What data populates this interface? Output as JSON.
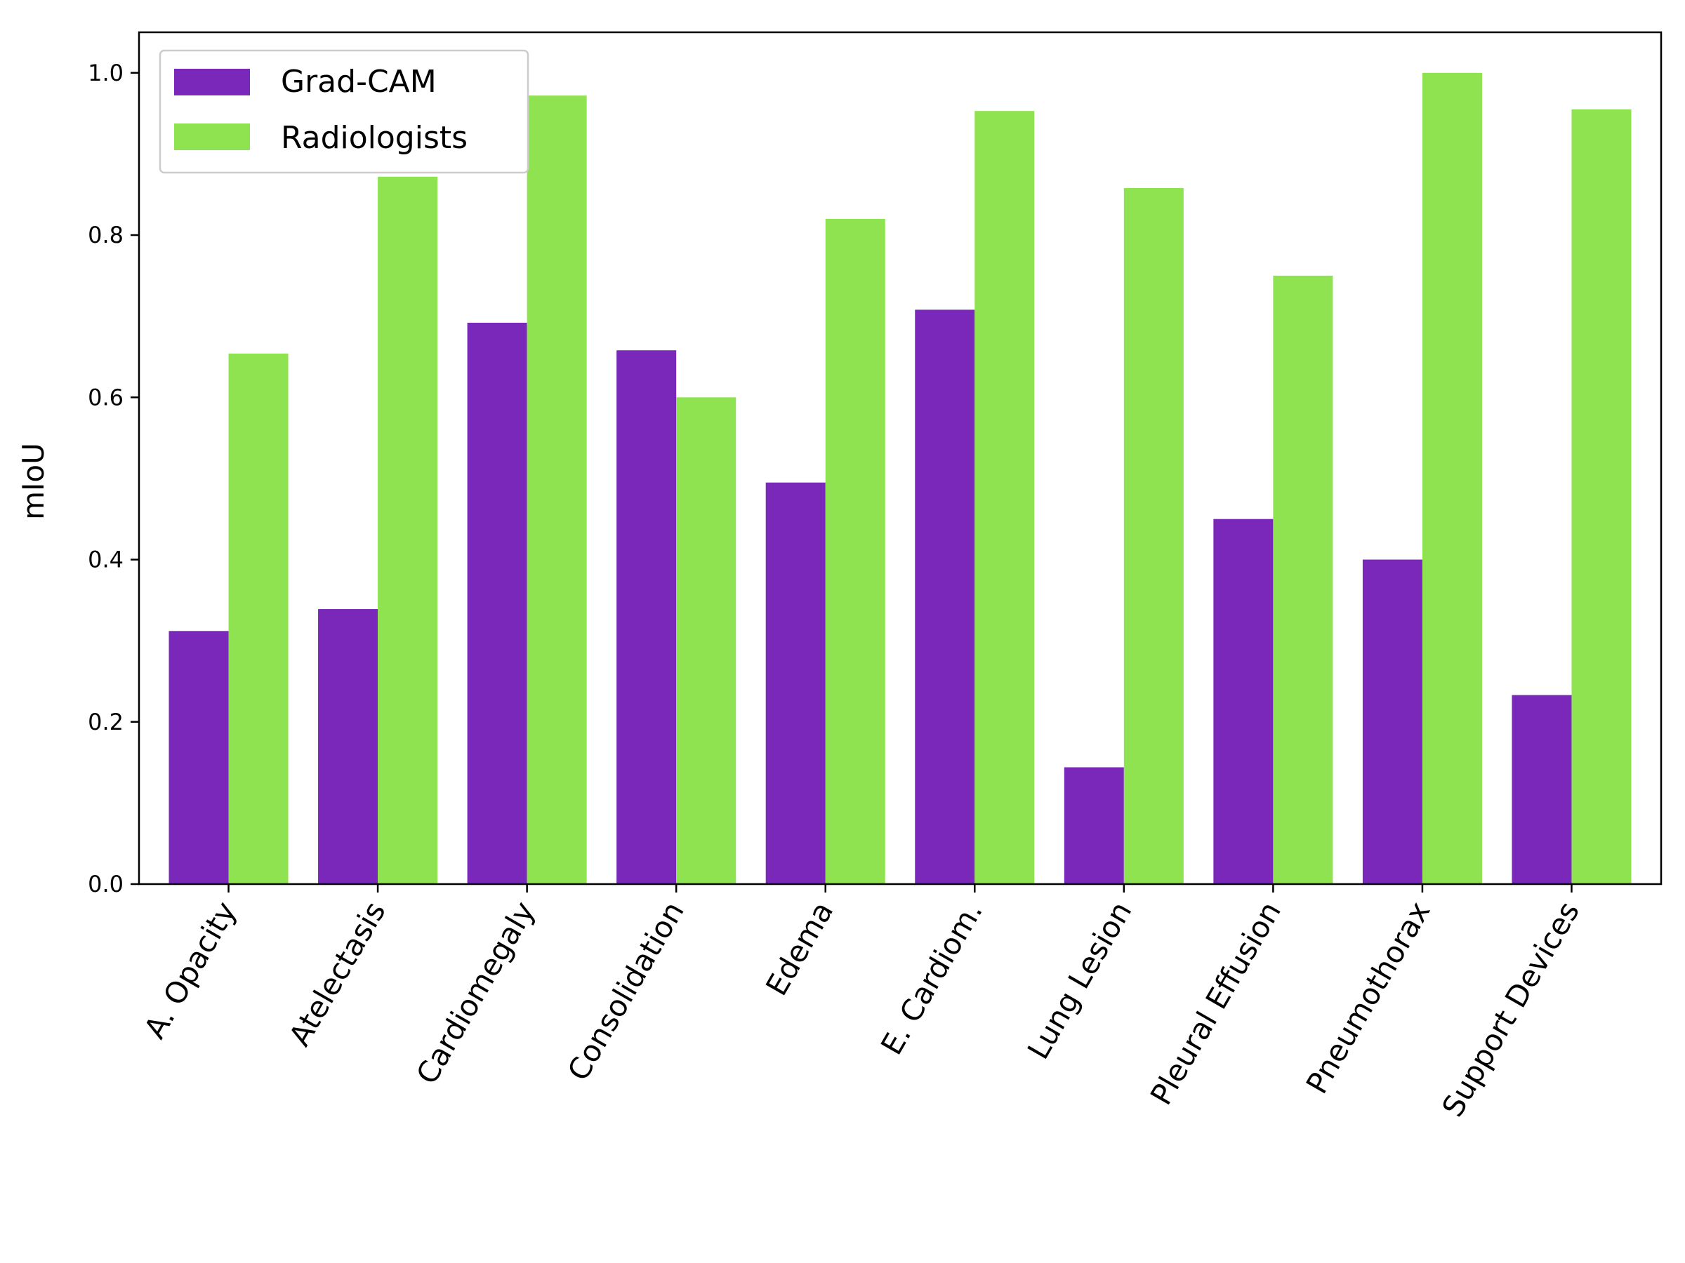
{
  "chart_data": {
    "type": "bar",
    "title": "",
    "xlabel": "",
    "ylabel": "mIoU",
    "ylim": [
      0,
      1.05
    ],
    "yticks": [
      0.0,
      0.2,
      0.4,
      0.6,
      0.8,
      1.0
    ],
    "ytick_labels": [
      "0.0",
      "0.2",
      "0.4",
      "0.6",
      "0.8",
      "1.0"
    ],
    "grid": false,
    "legend_position": "top-left",
    "categories": [
      "A. Opacity",
      "Atelectasis",
      "Cardiomegaly",
      "Consolidation",
      "Edema",
      "E. Cardiom.",
      "Lung Lesion",
      "Pleural Effusion",
      "Pneumothorax",
      "Support Devices"
    ],
    "series": [
      {
        "name": "Grad-CAM",
        "color": "#7928ba",
        "values": [
          0.312,
          0.339,
          0.692,
          0.658,
          0.495,
          0.708,
          0.144,
          0.45,
          0.4,
          0.233
        ]
      },
      {
        "name": "Radiologists",
        "color": "#8fe350",
        "values": [
          0.654,
          0.872,
          0.972,
          0.6,
          0.82,
          0.953,
          0.858,
          0.75,
          1.0,
          0.955
        ]
      }
    ]
  }
}
